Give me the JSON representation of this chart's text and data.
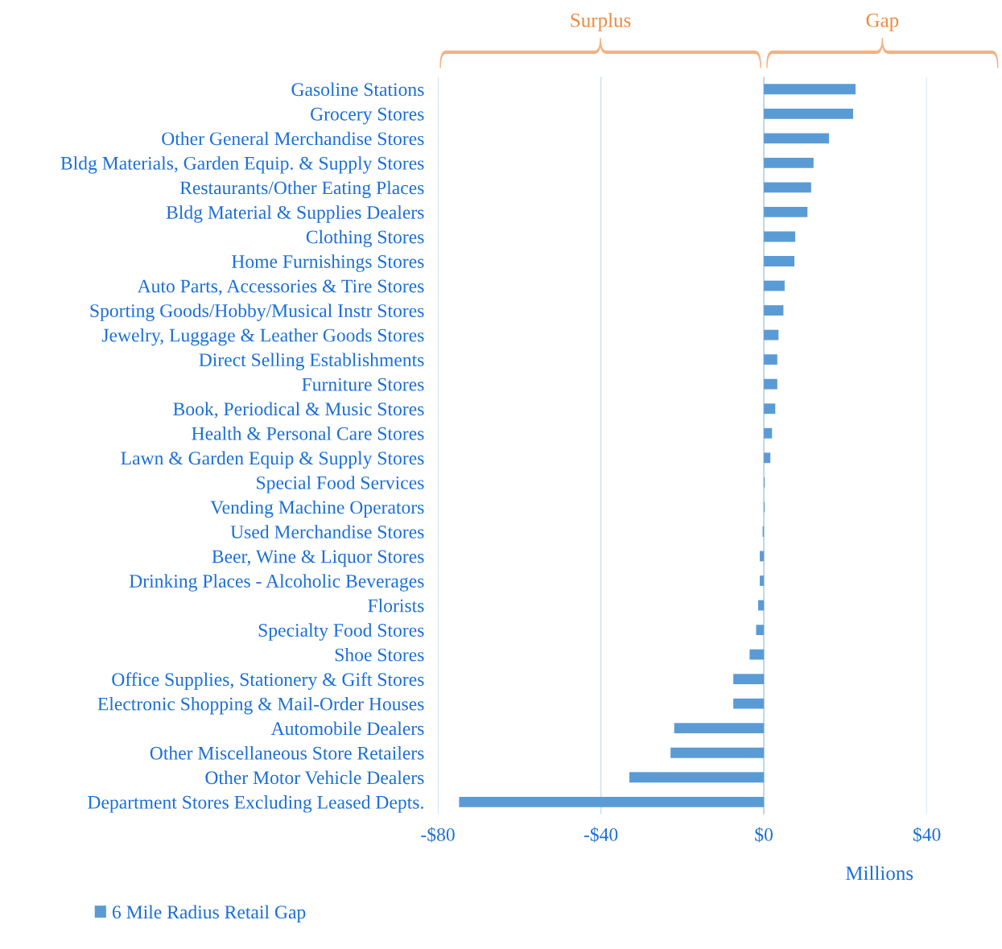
{
  "chart_data": {
    "type": "bar",
    "orientation": "horizontal",
    "categories": [
      "Gasoline Stations",
      "Grocery Stores",
      "Other General Merchandise Stores",
      "Bldg Materials, Garden Equip. & Supply Stores",
      "Restaurants/Other Eating Places",
      "Bldg Material & Supplies Dealers",
      "Clothing Stores",
      "Home Furnishings Stores",
      "Auto Parts, Accessories & Tire Stores",
      "Sporting Goods/Hobby/Musical Instr Stores",
      "Jewelry, Luggage & Leather Goods Stores",
      "Direct Selling Establishments",
      "Furniture Stores",
      "Book, Periodical & Music Stores",
      "Health & Personal Care Stores",
      "Lawn & Garden Equip & Supply Stores",
      "Special Food Services",
      "Vending Machine Operators",
      "Used Merchandise Stores",
      "Beer, Wine & Liquor Stores",
      "Drinking Places - Alcoholic Beverages",
      "Florists",
      "Specialty Food Stores",
      "Shoe Stores",
      "Office Supplies, Stationery & Gift Stores",
      "Electronic Shopping & Mail-Order Houses",
      "Automobile Dealers",
      "Other Miscellaneous Store Retailers",
      "Other Motor Vehicle Dealers",
      "Department Stores Excluding Leased Depts."
    ],
    "series": [
      {
        "name": "6 Mile Radius Retail Gap",
        "color": "#5b9bd5",
        "values": [
          22.5,
          21.9,
          16.0,
          12.2,
          11.6,
          10.7,
          7.7,
          7.5,
          5.1,
          4.8,
          3.6,
          3.3,
          3.3,
          2.8,
          2.0,
          1.6,
          0.2,
          0.2,
          -0.3,
          -1.0,
          -1.0,
          -1.4,
          -1.9,
          -3.5,
          -7.5,
          -7.5,
          -22.0,
          -22.9,
          -33.0,
          -74.8
        ]
      }
    ],
    "xlim": [
      -80,
      40
    ],
    "ref_lines": [
      {
        "axis": "x",
        "value": 0,
        "color": "#bdd7ee"
      }
    ],
    "xticks": [
      {
        "value": -80,
        "label": "-$80"
      },
      {
        "value": -40,
        "label": "-$40"
      },
      {
        "value": 0,
        "label": "$0"
      },
      {
        "value": 40,
        "label": "$40"
      }
    ],
    "xlabel": "Millions",
    "annotations": [
      "Surplus",
      "Gap"
    ],
    "grid": "x",
    "legend": "bottom"
  }
}
